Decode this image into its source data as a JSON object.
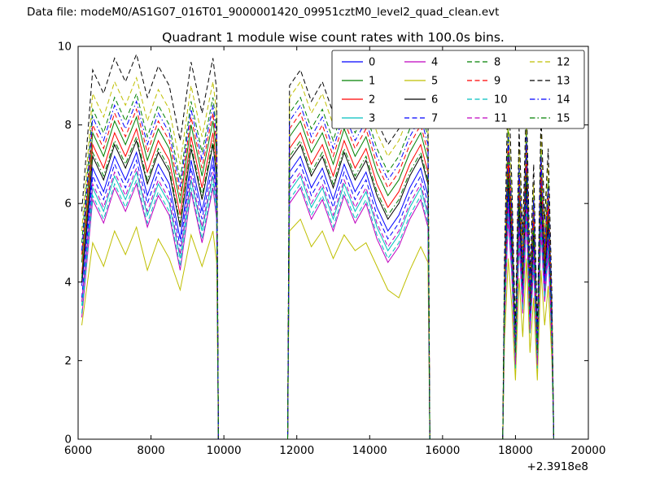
{
  "header": {
    "data_file_label": "Data file: modeM0/AS1G07_016T01_9000001420_09951cztM0_level2_quad_clean.evt"
  },
  "chart_data": {
    "type": "line",
    "title": "Quadrant 1 module wise count rates with 100.0s bins.",
    "xlabel": "",
    "ylabel": "",
    "xlim": [
      6000,
      20000
    ],
    "ylim": [
      0,
      10
    ],
    "x_ticks": [
      6000,
      8000,
      10000,
      12000,
      14000,
      16000,
      18000,
      20000
    ],
    "y_ticks": [
      0,
      2,
      4,
      6,
      8,
      10
    ],
    "x_offset_label": "+2.3918e8",
    "grid": false,
    "legend_position": "upper right",
    "bin_seconds": "100.0",
    "x": [
      6100,
      6400,
      6700,
      7000,
      7300,
      7600,
      7900,
      8200,
      8500,
      8800,
      9100,
      9400,
      9700,
      9800,
      9850,
      11750,
      11800,
      12100,
      12400,
      12700,
      13000,
      13300,
      13600,
      13900,
      14200,
      14500,
      14800,
      15100,
      15400,
      15600,
      15650,
      17650,
      17700,
      17800,
      17900,
      18000,
      18100,
      18200,
      18300,
      18400,
      18500,
      18600,
      18700,
      18800,
      18900,
      19000,
      19050
    ],
    "series": [
      {
        "name": "0",
        "color": "#0000ff",
        "linestyle": "solid",
        "values": [
          3.9,
          6.9,
          6.3,
          7.2,
          6.6,
          7.3,
          6.2,
          7.0,
          6.5,
          5.1,
          7.1,
          5.8,
          7.2,
          6.4,
          0,
          0,
          6.8,
          7.2,
          6.4,
          6.9,
          6.1,
          7.0,
          6.3,
          6.8,
          5.9,
          5.3,
          5.7,
          6.4,
          6.9,
          6.2,
          0,
          0,
          3.4,
          6.4,
          4.7,
          2.0,
          5.7,
          3.7,
          6.4,
          3.0,
          5.0,
          2.0,
          6.0,
          4.0,
          5.4,
          2.7,
          0
        ]
      },
      {
        "name": "1",
        "color": "#008000",
        "linestyle": "solid",
        "values": [
          4.5,
          7.8,
          7.2,
          8.1,
          7.5,
          8.2,
          7.1,
          7.9,
          7.4,
          6.0,
          8.0,
          6.7,
          8.1,
          7.3,
          0,
          0,
          7.7,
          8.1,
          7.3,
          7.8,
          7.0,
          7.9,
          7.2,
          7.7,
          6.8,
          6.2,
          6.6,
          7.3,
          7.8,
          7.1,
          0,
          0,
          3.9,
          7.3,
          5.4,
          2.3,
          6.5,
          4.2,
          7.3,
          3.5,
          5.7,
          2.3,
          6.9,
          4.6,
          6.1,
          3.1,
          0
        ]
      },
      {
        "name": "2",
        "color": "#ff0000",
        "linestyle": "solid",
        "values": [
          4.2,
          7.5,
          6.9,
          7.8,
          7.2,
          7.9,
          6.8,
          7.6,
          7.1,
          5.7,
          7.7,
          6.4,
          7.8,
          7.0,
          0,
          0,
          7.4,
          7.8,
          7.0,
          7.5,
          6.7,
          7.6,
          6.9,
          7.4,
          6.5,
          5.9,
          6.3,
          7.0,
          7.5,
          6.8,
          0,
          0,
          3.7,
          7.0,
          5.2,
          2.2,
          6.2,
          4.1,
          7.0,
          3.3,
          5.5,
          2.2,
          6.6,
          4.4,
          5.9,
          3.0,
          0
        ]
      },
      {
        "name": "3",
        "color": "#00bfbf",
        "linestyle": "solid",
        "values": [
          3.4,
          6.4,
          5.8,
          6.7,
          6.1,
          6.8,
          5.7,
          6.5,
          6.0,
          4.6,
          6.6,
          5.3,
          6.7,
          5.9,
          0,
          0,
          6.3,
          6.7,
          5.9,
          6.4,
          5.6,
          6.5,
          5.8,
          6.3,
          5.4,
          4.8,
          5.2,
          5.9,
          6.4,
          5.7,
          0,
          0,
          3.1,
          5.9,
          4.4,
          1.9,
          5.3,
          3.4,
          5.9,
          2.8,
          4.7,
          1.9,
          5.6,
          3.7,
          5.0,
          2.5,
          0
        ]
      },
      {
        "name": "4",
        "color": "#bf00bf",
        "linestyle": "solid",
        "values": [
          3.1,
          6.1,
          5.5,
          6.4,
          5.8,
          6.5,
          5.4,
          6.2,
          5.7,
          4.3,
          6.3,
          5.0,
          6.4,
          5.6,
          0,
          0,
          6.0,
          6.4,
          5.6,
          6.1,
          5.3,
          6.2,
          5.5,
          6.0,
          5.1,
          4.5,
          4.9,
          5.6,
          6.1,
          5.4,
          0,
          0,
          3.0,
          5.6,
          4.2,
          1.8,
          5.0,
          3.2,
          5.6,
          2.7,
          4.4,
          1.8,
          5.3,
          3.5,
          4.7,
          2.4,
          0
        ]
      },
      {
        "name": "5",
        "color": "#bfbf00",
        "linestyle": "solid",
        "values": [
          2.9,
          5.0,
          4.4,
          5.3,
          4.7,
          5.4,
          4.3,
          5.1,
          4.6,
          3.8,
          5.2,
          4.4,
          5.3,
          4.5,
          0,
          0,
          5.3,
          5.6,
          4.9,
          5.3,
          4.6,
          5.2,
          4.8,
          5.0,
          4.4,
          3.8,
          3.6,
          4.3,
          4.9,
          4.5,
          0,
          0,
          2.5,
          4.6,
          3.4,
          1.5,
          4.1,
          2.6,
          4.6,
          2.2,
          3.6,
          1.5,
          4.3,
          2.9,
          3.9,
          2.0,
          0
        ]
      },
      {
        "name": "6",
        "color": "#000000",
        "linestyle": "solid",
        "values": [
          4.0,
          7.2,
          6.6,
          7.5,
          6.9,
          7.6,
          6.5,
          7.3,
          6.8,
          5.4,
          7.4,
          6.1,
          7.5,
          6.7,
          0,
          0,
          7.1,
          7.5,
          6.7,
          7.2,
          6.4,
          7.3,
          6.6,
          7.1,
          6.2,
          5.6,
          6.0,
          6.7,
          7.2,
          6.5,
          0,
          0,
          3.5,
          6.7,
          5.0,
          2.1,
          6.0,
          3.9,
          6.7,
          3.2,
          5.3,
          2.1,
          6.3,
          4.2,
          5.6,
          2.8,
          0
        ]
      },
      {
        "name": "7",
        "color": "#0000ff",
        "linestyle": "dashed",
        "values": [
          3.6,
          6.7,
          6.1,
          7.0,
          6.4,
          7.1,
          6.0,
          6.8,
          6.3,
          4.9,
          6.9,
          5.6,
          7.0,
          6.2,
          0,
          0,
          6.6,
          7.0,
          6.2,
          6.7,
          5.9,
          6.8,
          6.1,
          6.6,
          5.7,
          5.1,
          5.5,
          6.2,
          6.7,
          6.0,
          0,
          0,
          3.3,
          6.2,
          4.6,
          2.0,
          5.5,
          3.6,
          6.2,
          2.9,
          4.9,
          2.0,
          5.8,
          3.9,
          5.2,
          2.6,
          0
        ]
      },
      {
        "name": "8",
        "color": "#008000",
        "linestyle": "dashed",
        "values": [
          5.0,
          8.4,
          7.8,
          8.7,
          8.1,
          8.8,
          7.7,
          8.5,
          8.0,
          6.6,
          8.6,
          7.3,
          8.7,
          7.9,
          0,
          0,
          8.3,
          8.7,
          7.9,
          8.4,
          7.6,
          8.5,
          7.8,
          8.3,
          7.4,
          6.8,
          7.2,
          7.9,
          8.4,
          7.7,
          0,
          0,
          4.2,
          7.9,
          5.9,
          2.5,
          7.0,
          4.6,
          7.9,
          3.8,
          6.2,
          2.5,
          7.4,
          5.0,
          6.6,
          3.4,
          0
        ]
      },
      {
        "name": "9",
        "color": "#ff0000",
        "linestyle": "dashed",
        "values": [
          4.7,
          8.0,
          7.4,
          8.3,
          7.7,
          8.4,
          7.3,
          8.1,
          7.6,
          6.2,
          8.2,
          6.9,
          8.3,
          7.5,
          0,
          0,
          7.9,
          8.3,
          7.5,
          8.0,
          7.2,
          8.1,
          7.4,
          7.9,
          7.0,
          6.4,
          6.8,
          7.5,
          8.0,
          7.3,
          0,
          0,
          4.0,
          7.5,
          5.6,
          2.4,
          6.7,
          4.4,
          7.5,
          3.6,
          5.9,
          2.4,
          7.1,
          4.8,
          6.3,
          3.2,
          0
        ]
      },
      {
        "name": "10",
        "color": "#00bfbf",
        "linestyle": "dashed",
        "values": [
          3.2,
          6.2,
          5.6,
          6.5,
          5.9,
          6.6,
          5.5,
          6.3,
          5.8,
          4.4,
          6.4,
          5.1,
          6.5,
          5.7,
          0,
          0,
          6.1,
          6.5,
          5.7,
          6.2,
          5.4,
          6.3,
          5.6,
          6.1,
          5.2,
          4.6,
          5.0,
          5.7,
          6.2,
          5.5,
          0,
          0,
          3.0,
          5.8,
          4.3,
          1.8,
          5.1,
          3.3,
          5.8,
          2.7,
          4.5,
          1.8,
          5.4,
          3.6,
          4.8,
          2.4,
          0
        ]
      },
      {
        "name": "11",
        "color": "#bf00bf",
        "linestyle": "dashed",
        "values": [
          3.5,
          6.5,
          5.9,
          6.8,
          6.2,
          6.9,
          5.8,
          6.6,
          6.1,
          4.7,
          6.7,
          5.4,
          6.8,
          6.0,
          0,
          0,
          6.4,
          6.8,
          6.0,
          6.5,
          5.7,
          6.6,
          5.9,
          6.4,
          5.5,
          4.9,
          5.3,
          6.0,
          6.5,
          5.8,
          0,
          0,
          3.2,
          6.0,
          4.5,
          1.9,
          5.4,
          3.5,
          6.0,
          2.8,
          4.8,
          1.9,
          5.7,
          3.8,
          5.1,
          2.5,
          0
        ]
      },
      {
        "name": "12",
        "color": "#bfbf00",
        "linestyle": "dashed",
        "values": [
          5.3,
          8.8,
          8.2,
          9.1,
          8.5,
          9.2,
          8.1,
          8.9,
          8.4,
          7.0,
          9.0,
          7.7,
          9.1,
          8.3,
          0,
          0,
          8.7,
          9.1,
          8.3,
          8.8,
          8.0,
          8.9,
          8.2,
          8.7,
          7.8,
          7.2,
          7.6,
          8.3,
          8.8,
          8.1,
          0,
          0,
          4.4,
          8.3,
          6.2,
          2.6,
          7.4,
          4.8,
          8.3,
          4.0,
          6.5,
          2.6,
          7.8,
          5.2,
          7.0,
          3.5,
          0
        ]
      },
      {
        "name": "13",
        "color": "#000000",
        "linestyle": "dashed",
        "values": [
          5.8,
          9.4,
          8.8,
          9.7,
          9.1,
          9.8,
          8.7,
          9.5,
          9.0,
          7.6,
          9.6,
          8.3,
          9.7,
          8.9,
          0,
          0,
          9.0,
          9.4,
          8.6,
          9.1,
          8.3,
          9.2,
          8.5,
          9.0,
          8.1,
          7.5,
          7.9,
          8.6,
          9.1,
          8.4,
          0,
          0,
          4.7,
          9.3,
          6.6,
          2.8,
          7.9,
          5.2,
          8.8,
          4.2,
          7.0,
          2.8,
          8.3,
          5.6,
          7.4,
          3.7,
          0
        ]
      },
      {
        "name": "14",
        "color": "#0000ff",
        "linestyle": "dashdot",
        "values": [
          4.8,
          8.2,
          7.6,
          8.5,
          7.9,
          8.6,
          7.5,
          8.3,
          7.8,
          6.4,
          8.4,
          7.1,
          8.5,
          7.7,
          0,
          0,
          8.1,
          8.5,
          7.7,
          8.2,
          7.4,
          8.3,
          7.6,
          8.1,
          7.2,
          6.6,
          7.0,
          7.7,
          8.2,
          7.5,
          0,
          0,
          4.1,
          7.7,
          5.8,
          2.4,
          6.9,
          4.5,
          7.7,
          3.7,
          6.1,
          2.4,
          7.2,
          4.9,
          6.4,
          3.3,
          0
        ]
      },
      {
        "name": "15",
        "color": "#008000",
        "linestyle": "dashdot",
        "values": [
          4.1,
          7.3,
          6.7,
          7.6,
          7.0,
          7.7,
          6.6,
          7.4,
          6.9,
          5.5,
          7.5,
          6.2,
          7.6,
          6.8,
          0,
          0,
          7.2,
          7.6,
          6.8,
          7.3,
          6.5,
          7.4,
          6.7,
          7.2,
          6.3,
          5.7,
          6.1,
          6.8,
          7.3,
          6.6,
          0,
          0,
          3.6,
          6.8,
          5.1,
          2.2,
          6.1,
          4.0,
          6.8,
          3.3,
          5.4,
          2.2,
          6.4,
          4.3,
          5.7,
          2.9,
          0
        ]
      }
    ]
  }
}
